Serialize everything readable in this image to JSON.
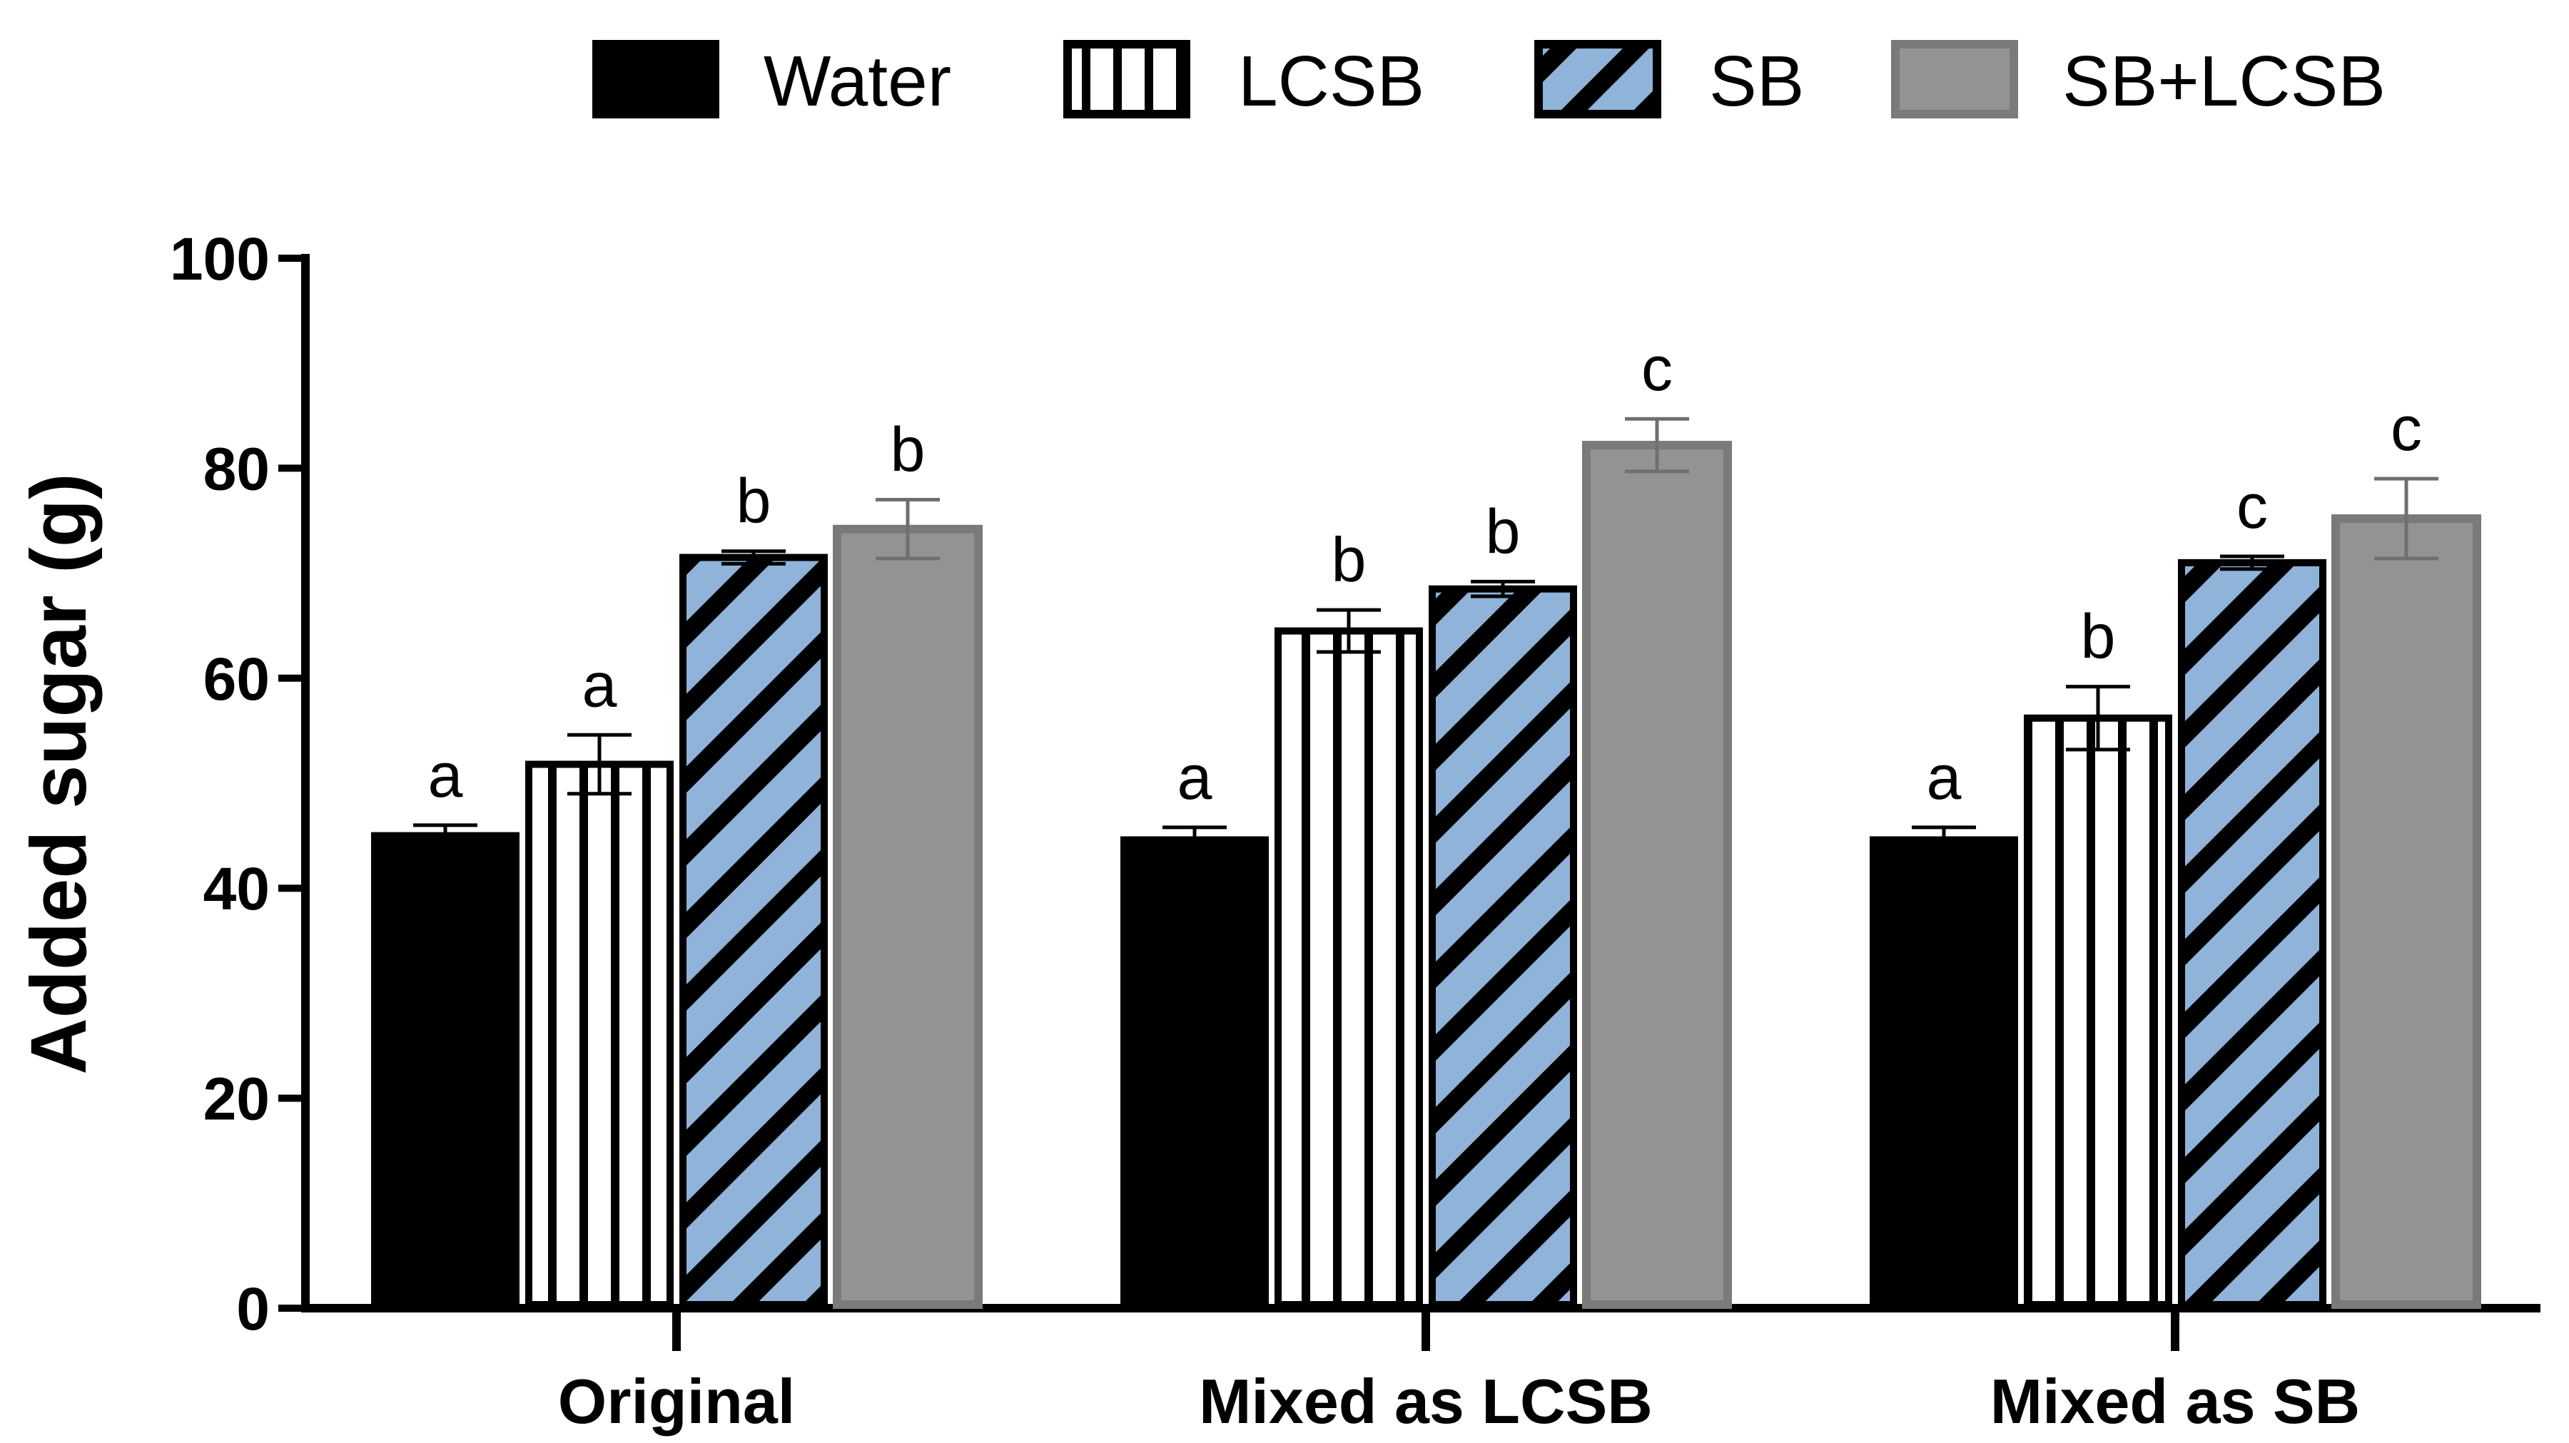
{
  "chart_data": {
    "type": "bar",
    "title": "",
    "xlabel": "",
    "ylabel": "Added sugar (g)",
    "ylim": [
      0,
      100
    ],
    "yticks": [
      0,
      20,
      40,
      60,
      80,
      100
    ],
    "categories": [
      "Original",
      "Mixed as LCSB",
      "Mixed as SB"
    ],
    "legend_position": "top",
    "series": [
      {
        "name": "Water",
        "style": "solid",
        "fill": "#000000",
        "stroke": "#000000",
        "values": [
          45,
          44.6,
          44.6
        ],
        "errors": [
          1.0,
          1.2,
          1.2
        ],
        "labels": [
          "a",
          "a",
          "a"
        ]
      },
      {
        "name": "LCSB",
        "style": "vertical-stripes",
        "fill": "#ffffff",
        "stroke": "#000000",
        "values": [
          51.8,
          64.5,
          56.2
        ],
        "errors": [
          2.8,
          2.0,
          3.0
        ],
        "labels": [
          "a",
          "b",
          "b"
        ]
      },
      {
        "name": "SB",
        "style": "diagonal-stripes",
        "fill": "#8fb3d9",
        "stroke": "#000000",
        "values": [
          71.5,
          68.5,
          71.0
        ],
        "errors": [
          0.6,
          0.7,
          0.6
        ],
        "labels": [
          "b",
          "b",
          "c"
        ]
      },
      {
        "name": "SB+LCSB",
        "style": "solid",
        "fill": "#939393",
        "stroke": "#7a7a7a",
        "values": [
          74.2,
          82.2,
          75.2
        ],
        "errors": [
          2.8,
          2.5,
          3.8
        ],
        "labels": [
          "b",
          "c",
          "c"
        ]
      }
    ]
  }
}
